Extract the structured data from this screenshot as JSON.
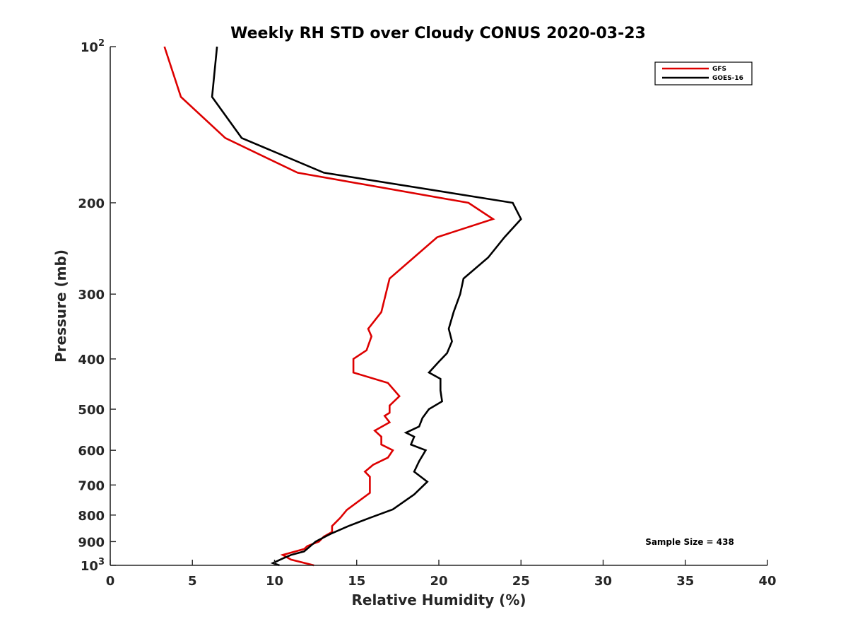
{
  "chart_data": {
    "type": "line",
    "title": "Weekly RH STD over Cloudy CONUS 2020-03-23",
    "xlabel": "Relative Humidity (%)",
    "ylabel": "Pressure (mb)",
    "xlim": [
      0,
      40
    ],
    "ylim": [
      100,
      1000
    ],
    "yscale": "log",
    "y_reversed": true,
    "grid": false,
    "legend_position": "top-right",
    "xticks": [
      0,
      5,
      10,
      15,
      20,
      25,
      30,
      35,
      40
    ],
    "xtick_labels": [
      "0",
      "5",
      "10",
      "15",
      "20",
      "25",
      "30",
      "35",
      "40"
    ],
    "yticks": [
      100,
      200,
      300,
      400,
      500,
      600,
      700,
      800,
      900,
      1000
    ],
    "ytick_labels": [
      {
        "base": "10",
        "sup": "2"
      },
      {
        "base": "200",
        "sup": ""
      },
      {
        "base": "300",
        "sup": ""
      },
      {
        "base": "400",
        "sup": ""
      },
      {
        "base": "500",
        "sup": ""
      },
      {
        "base": "600",
        "sup": ""
      },
      {
        "base": "700",
        "sup": ""
      },
      {
        "base": "800",
        "sup": ""
      },
      {
        "base": "900",
        "sup": ""
      },
      {
        "base": "10",
        "sup": "3"
      }
    ],
    "annotation": "Sample Size = 438",
    "series": [
      {
        "name": "GFS",
        "color": "#dd0000",
        "points": [
          [
            3.3,
            100
          ],
          [
            4.3,
            125
          ],
          [
            7.0,
            150
          ],
          [
            11.4,
            175
          ],
          [
            21.8,
            200
          ],
          [
            23.3,
            215
          ],
          [
            19.9,
            233
          ],
          [
            17.0,
            280
          ],
          [
            16.5,
            325
          ],
          [
            15.7,
            350
          ],
          [
            15.9,
            362
          ],
          [
            15.6,
            385
          ],
          [
            14.8,
            400
          ],
          [
            14.8,
            425
          ],
          [
            16.9,
            445
          ],
          [
            17.6,
            472
          ],
          [
            17.0,
            492
          ],
          [
            17.0,
            508
          ],
          [
            16.7,
            515
          ],
          [
            17.0,
            530
          ],
          [
            16.1,
            550
          ],
          [
            16.5,
            565
          ],
          [
            16.5,
            585
          ],
          [
            17.2,
            600
          ],
          [
            16.9,
            620
          ],
          [
            16.0,
            640
          ],
          [
            15.5,
            660
          ],
          [
            15.8,
            675
          ],
          [
            15.8,
            725
          ],
          [
            14.4,
            782
          ],
          [
            14.0,
            810
          ],
          [
            13.5,
            840
          ],
          [
            13.5,
            862
          ],
          [
            13.0,
            880
          ],
          [
            12.7,
            900
          ],
          [
            12.0,
            918
          ],
          [
            11.8,
            930
          ],
          [
            10.5,
            955
          ],
          [
            11.0,
            975
          ],
          [
            12.4,
            1000
          ]
        ]
      },
      {
        "name": "GOES-16",
        "color": "#000000",
        "points": [
          [
            6.5,
            100
          ],
          [
            6.2,
            125
          ],
          [
            8.0,
            150
          ],
          [
            13.0,
            175
          ],
          [
            24.5,
            200
          ],
          [
            25.0,
            215
          ],
          [
            24.0,
            233
          ],
          [
            23.0,
            255
          ],
          [
            21.5,
            280
          ],
          [
            21.3,
            300
          ],
          [
            20.9,
            325
          ],
          [
            20.6,
            350
          ],
          [
            20.8,
            370
          ],
          [
            20.5,
            390
          ],
          [
            20.0,
            405
          ],
          [
            19.4,
            425
          ],
          [
            20.1,
            437
          ],
          [
            20.1,
            460
          ],
          [
            20.2,
            483
          ],
          [
            19.4,
            500
          ],
          [
            19.0,
            520
          ],
          [
            18.8,
            540
          ],
          [
            18.0,
            555
          ],
          [
            18.5,
            565
          ],
          [
            18.3,
            585
          ],
          [
            19.2,
            600
          ],
          [
            18.8,
            630
          ],
          [
            18.5,
            660
          ],
          [
            19.3,
            690
          ],
          [
            18.5,
            730
          ],
          [
            17.2,
            780
          ],
          [
            15.8,
            810
          ],
          [
            14.5,
            840
          ],
          [
            13.4,
            870
          ],
          [
            12.5,
            900
          ],
          [
            11.8,
            940
          ],
          [
            11.0,
            955
          ],
          [
            10.5,
            970
          ],
          [
            10.2,
            980
          ],
          [
            9.9,
            990
          ],
          [
            10.3,
            1000
          ]
        ]
      }
    ]
  }
}
